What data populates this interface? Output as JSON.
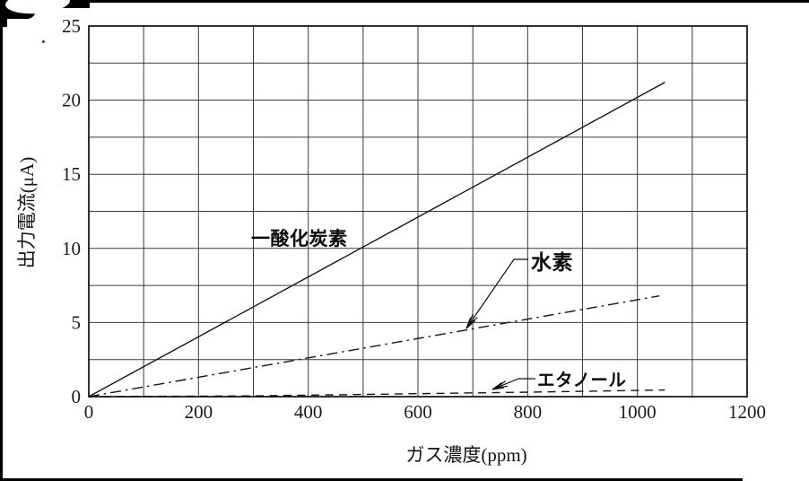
{
  "page": {
    "background_color": "#ffffff",
    "scan_border_color": "#000000",
    "description_note": "scanned line chart of gas sensor output current vs gas concentration"
  },
  "chart_data": {
    "type": "line",
    "title": "",
    "xlabel": "ガス濃度(ppm)",
    "ylabel": "出力電流(μA)",
    "xlim": [
      0,
      1200
    ],
    "ylim": [
      0,
      25
    ],
    "x_ticks": [
      0,
      200,
      400,
      600,
      800,
      1000,
      1200
    ],
    "y_ticks": [
      0,
      5,
      10,
      15,
      20,
      25
    ],
    "x_grid_step": 100,
    "y_grid_step": 2.5,
    "grid": true,
    "legend_position": "inline-annotations",
    "line_color": "#141414",
    "grid_color": "#3a3a3a",
    "box_color": "#000000",
    "series": [
      {
        "key": "co",
        "name": "一酸化炭素",
        "style": "solid",
        "points": [
          [
            0,
            0
          ],
          [
            1050,
            21.2
          ]
        ]
      },
      {
        "key": "h2",
        "name": "水素",
        "style": "dash-dot",
        "points": [
          [
            0,
            0
          ],
          [
            1040,
            6.8
          ]
        ]
      },
      {
        "key": "eth",
        "name": "エタノール",
        "style": "dashed",
        "points": [
          [
            0,
            0
          ],
          [
            300,
            0.05
          ],
          [
            600,
            0.2
          ],
          [
            800,
            0.3
          ],
          [
            1050,
            0.45
          ]
        ]
      }
    ]
  }
}
